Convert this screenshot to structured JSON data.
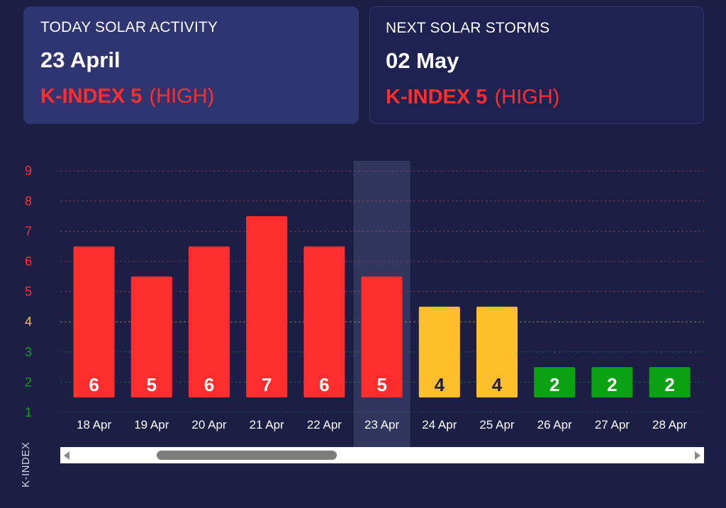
{
  "cards": {
    "today": {
      "title": "TODAY SOLAR ACTIVITY",
      "date": "23 April",
      "k_label": "K-INDEX 5",
      "k_level": "(HIGH)"
    },
    "next": {
      "title": "NEXT SOLAR STORMS",
      "date": "02 May",
      "k_label": "K-INDEX 5",
      "k_level": "(HIGH)"
    }
  },
  "colors": {
    "high": "#ff2d2d",
    "medium": "#ffbf2b",
    "low": "#0aa112",
    "highlight_column": "#31365f",
    "background": "#1c1f45"
  },
  "chart_data": {
    "type": "bar",
    "categories": [
      "18 Apr",
      "19 Apr",
      "20 Apr",
      "21 Apr",
      "22 Apr",
      "23 Apr",
      "24 Apr",
      "25 Apr",
      "26 Apr",
      "27 Apr",
      "28 Apr"
    ],
    "values": [
      6,
      5,
      6,
      7,
      6,
      5,
      4,
      4,
      2,
      2,
      2
    ],
    "levels": [
      "high",
      "high",
      "high",
      "high",
      "high",
      "high",
      "medium",
      "medium",
      "low",
      "low",
      "low"
    ],
    "ylabel": "K-INDEX",
    "yticks": [
      1,
      2,
      3,
      4,
      5,
      6,
      7,
      8,
      9
    ],
    "ylim": [
      1,
      9
    ],
    "highlighted_category": "23 Apr",
    "grid": true,
    "scrollbar": true
  }
}
